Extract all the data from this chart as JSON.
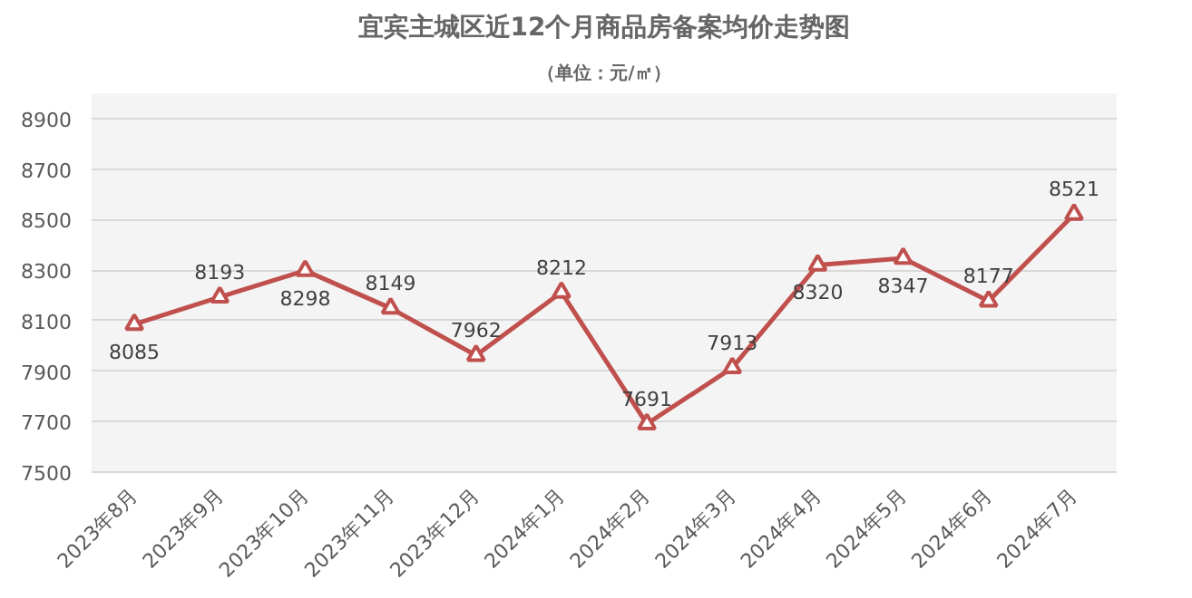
{
  "chart_data": {
    "type": "line",
    "title": "宜宾主城区近12个月商品房备案均价走势图",
    "subtitle": "（单位：元/㎡）",
    "categories": [
      "2023年8月",
      "2023年9月",
      "2023年10月",
      "2023年11月",
      "2023年12月",
      "2024年1月",
      "2024年2月",
      "2024年3月",
      "2024年4月",
      "2024年5月",
      "2024年6月",
      "2024年7月"
    ],
    "series": [
      {
        "color": "#c0504d",
        "values": [
          8085,
          8193,
          8298,
          8149,
          7962,
          8212,
          7691,
          7913,
          8320,
          8347,
          8177,
          8521
        ]
      }
    ],
    "ylim": [
      7500,
      9000
    ],
    "yticks": [
      7500,
      7700,
      7900,
      8100,
      8300,
      8500,
      8700,
      8900
    ],
    "grid": "y",
    "marker": "triangle",
    "line_style": "solid",
    "data_labels": true
  }
}
